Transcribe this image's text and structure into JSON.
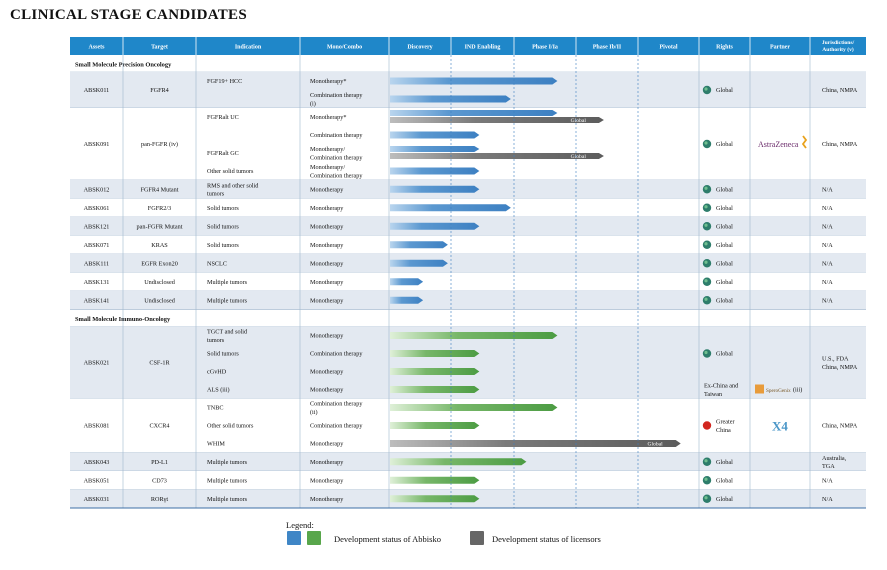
{
  "title": "CLINICAL STAGE CANDIDATES",
  "colors": {
    "header": "#1f87c9",
    "section_gray": "#e3e9f1",
    "abbisko_blue": "#4f8ec9",
    "abbisko_green": "#5aa64e",
    "licensor_gray": "#666666"
  },
  "headers": [
    "Assets",
    "Target",
    "Indication",
    "Mono/Combo",
    "Discovery",
    "IND Enabling",
    "Phase I/Ia",
    "Phase Ib/II",
    "Pivotal",
    "Rights",
    "Partner",
    "Jurisdictions/ Authority (v)"
  ],
  "phase_labels": [
    "Discovery",
    "IND Enabling",
    "Phase I/Ia",
    "Phase Ib/II",
    "Pivotal"
  ],
  "sections": [
    {
      "title": "Small Molecule Precision Oncology",
      "color": "blue",
      "assets": [
        {
          "asset": "ABSK011",
          "target": "FGFR4",
          "rights": "Global",
          "rights_icon": "globe-icon",
          "partner": "",
          "jurisdiction": "China, NMPA",
          "rows": [
            {
              "indication": "FGF19+ HCC",
              "mono": "Monotherapy*",
              "progress": 2.7
            },
            {
              "indication": "",
              "mono": "Combination therapy (i)",
              "progress": 1.95
            }
          ]
        },
        {
          "asset": "ABSK091",
          "target": "pan-FGFR (iv)",
          "rights": "Global",
          "rights_icon": "globe-icon",
          "partner": "AstraZeneca",
          "jurisdiction": "China, NMPA",
          "rows": [
            {
              "indication": "FGFRalt UC",
              "mono": "Monotherapy*",
              "progress": 2.7,
              "licensor_progress": 3.45,
              "licensor_label": "Global"
            },
            {
              "indication": "",
              "mono": "Combination therapy",
              "progress": 1.45
            },
            {
              "indication": "FGFRalt GC",
              "mono": "Monotherapy/ Combination therapy",
              "progress": 1.45,
              "licensor_progress": 3.45,
              "licensor_label": "Global"
            },
            {
              "indication": "Other solid tumors",
              "mono": "Monotherapy/ Combination therapy",
              "progress": 1.45
            }
          ]
        },
        {
          "asset": "ABSK012",
          "target": "FGFR4 Mutant",
          "rights": "Global",
          "rights_icon": "globe-icon",
          "partner": "",
          "jurisdiction": "N/A",
          "rows": [
            {
              "indication": "RMS and other solid tumors",
              "mono": "Monotherapy",
              "progress": 1.45
            }
          ]
        },
        {
          "asset": "ABSK061",
          "target": "FGFR2/3",
          "rights": "Global",
          "rights_icon": "globe-icon",
          "partner": "",
          "jurisdiction": "N/A",
          "rows": [
            {
              "indication": "Solid tumors",
              "mono": "Monotherapy",
              "progress": 1.95
            }
          ]
        },
        {
          "asset": "ABSK121",
          "target": "pan-FGFR Mutant",
          "rights": "Global",
          "rights_icon": "globe-icon",
          "partner": "",
          "jurisdiction": "N/A",
          "rows": [
            {
              "indication": "Solid tumors",
              "mono": "Monotherapy",
              "progress": 1.45
            }
          ]
        },
        {
          "asset": "ABSK071",
          "target": "KRAS",
          "rights": "Global",
          "rights_icon": "globe-icon",
          "partner": "",
          "jurisdiction": "N/A",
          "rows": [
            {
              "indication": "Solid tumors",
              "mono": "Monotherapy",
              "progress": 0.95
            }
          ]
        },
        {
          "asset": "ABSK111",
          "target": "EGFR Exon20",
          "rights": "Global",
          "rights_icon": "globe-icon",
          "partner": "",
          "jurisdiction": "N/A",
          "rows": [
            {
              "indication": "NSCLC",
              "mono": "Monotherapy",
              "progress": 0.95
            }
          ]
        },
        {
          "asset": "ABSK131",
          "target": "Undisclosed",
          "rights": "Global",
          "rights_icon": "globe-icon",
          "partner": "",
          "jurisdiction": "N/A",
          "rows": [
            {
              "indication": "Multiple tumors",
              "mono": "Monotherapy",
              "progress": 0.55
            }
          ]
        },
        {
          "asset": "ABSK141",
          "target": "Undisclosed",
          "rights": "Global",
          "rights_icon": "globe-icon",
          "partner": "",
          "jurisdiction": "N/A",
          "rows": [
            {
              "indication": "Multiple tumors",
              "mono": "Monotherapy",
              "progress": 0.55
            }
          ]
        }
      ]
    },
    {
      "title": "Small Molecule Immuno-Oncology",
      "color": "green",
      "assets": [
        {
          "asset": "ABSK021",
          "target": "CSF-1R",
          "rights": "Global",
          "rights_icon": "globe-icon",
          "partner": "",
          "jurisdiction": "U.S., FDA China, NMPA",
          "extra_rights": "Ex-China and Taiwan",
          "extra_partner": "SperoGenix",
          "extra_partner_note": "(iii)",
          "rows": [
            {
              "indication": "TGCT and solid tumors",
              "mono": "Monotherapy",
              "progress": 2.7
            },
            {
              "indication": "Solid tumors",
              "mono": "Combination therapy",
              "progress": 1.45
            },
            {
              "indication": "cGvHD",
              "mono": "Monotherapy",
              "progress": 1.45
            },
            {
              "indication": "ALS (iii)",
              "mono": "Monotherapy",
              "progress": 1.45
            }
          ]
        },
        {
          "asset": "ABSK081",
          "target": "CXCR4",
          "rights": "Greater China",
          "rights_icon": "china-map-icon",
          "partner": "X4",
          "jurisdiction": "China, NMPA",
          "rows": [
            {
              "indication": "TNBC",
              "mono": "Combination therapy (ii)",
              "progress": 2.7
            },
            {
              "indication": "Other solid tumors",
              "mono": "Combination therapy",
              "progress": 1.45
            },
            {
              "indication": "WHIM",
              "mono": "Monotherapy",
              "licensor_progress": 4.7,
              "licensor_label": "Global"
            }
          ]
        },
        {
          "asset": "ABSK043",
          "target": "PD-L1",
          "rights": "Global",
          "rights_icon": "globe-icon",
          "partner": "",
          "jurisdiction": "Australia, TGA",
          "rows": [
            {
              "indication": "Multiple tumors",
              "mono": "Monotherapy",
              "progress": 2.2
            }
          ]
        },
        {
          "asset": "ABSK051",
          "target": "CD73",
          "rights": "Global",
          "rights_icon": "globe-icon",
          "partner": "",
          "jurisdiction": "N/A",
          "rows": [
            {
              "indication": "Multiple tumors",
              "mono": "Monotherapy",
              "progress": 1.45
            }
          ]
        },
        {
          "asset": "ABSK031",
          "target": "RORγt",
          "rights": "Global",
          "rights_icon": "globe-icon",
          "partner": "",
          "jurisdiction": "N/A",
          "rows": [
            {
              "indication": "Multiple tumors",
              "mono": "Monotherapy",
              "progress": 1.45
            }
          ]
        }
      ]
    }
  ],
  "legend": {
    "title": "Legend:",
    "abbisko": "Development status of Abbisko",
    "licensors": "Development status of licensors"
  }
}
